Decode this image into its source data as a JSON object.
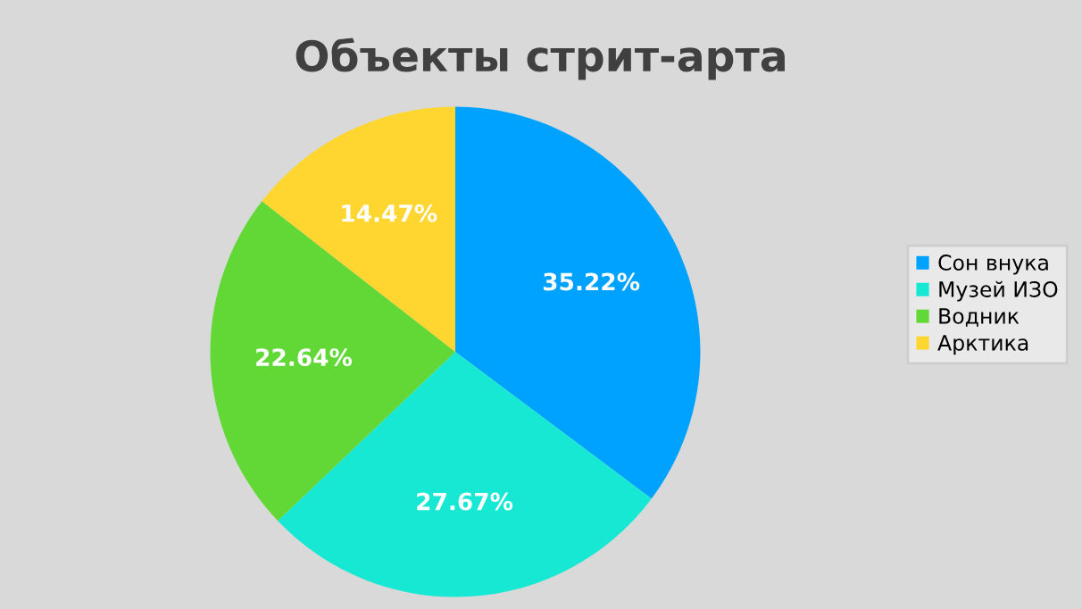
{
  "chart_data": {
    "type": "pie",
    "title": "Объекты стрит-арта",
    "categories": [
      "Сон внука",
      "Музей ИЗО",
      "Водник",
      "Арктика"
    ],
    "values": [
      35.22,
      27.67,
      22.64,
      14.47
    ],
    "colors": [
      "#00a2ff",
      "#16e8d4",
      "#62d836",
      "#ffd52f"
    ],
    "value_labels": [
      "35.22%",
      "27.67%",
      "22.64%",
      "14.47%"
    ],
    "legend": "right"
  }
}
